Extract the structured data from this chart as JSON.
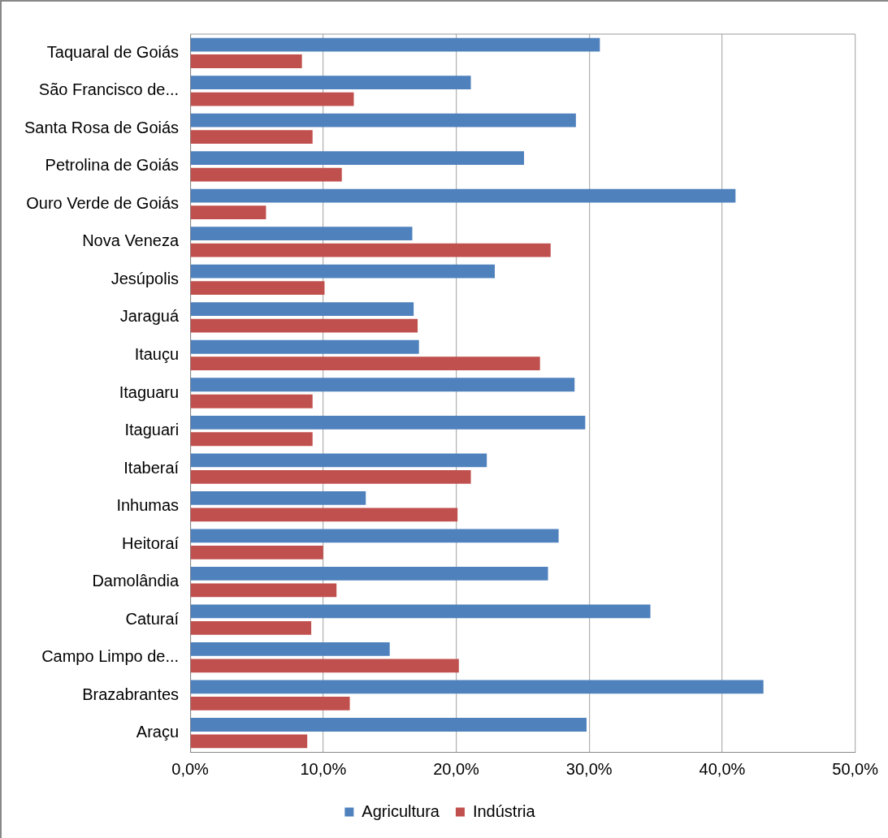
{
  "chart_data": {
    "type": "bar",
    "orientation": "horizontal",
    "categories": [
      "Taquaral de Goiás",
      "São Francisco de...",
      "Santa Rosa de Goiás",
      "Petrolina de Goiás",
      "Ouro Verde de Goiás",
      "Nova Veneza",
      "Jesúpolis",
      "Jaraguá",
      "Itauçu",
      "Itaguaru",
      "Itaguari",
      "Itaberaí",
      "Inhumas",
      "Heitoraí",
      "Damolândia",
      "Caturaí",
      "Campo Limpo de...",
      "Brazabrantes",
      "Araçu"
    ],
    "series": [
      {
        "name": "Agricultura",
        "color": "#4f81bd",
        "values": [
          30.8,
          21.1,
          29.0,
          25.1,
          41.0,
          16.7,
          22.9,
          16.8,
          17.2,
          28.9,
          29.7,
          22.3,
          13.2,
          27.7,
          26.9,
          34.6,
          15.0,
          43.1,
          29.8
        ]
      },
      {
        "name": "Indústria",
        "color": "#c0504d",
        "values": [
          8.4,
          12.3,
          9.2,
          11.4,
          5.7,
          27.1,
          10.1,
          17.1,
          26.3,
          9.2,
          9.2,
          21.1,
          20.1,
          10.0,
          11.0,
          9.1,
          20.2,
          12.0,
          8.8
        ]
      }
    ],
    "xlim": [
      0,
      50
    ],
    "xticks": [
      {
        "value": 0,
        "label": "0,0%"
      },
      {
        "value": 10,
        "label": "10,0%"
      },
      {
        "value": 20,
        "label": "20,0%"
      },
      {
        "value": 30,
        "label": "30,0%"
      },
      {
        "value": 40,
        "label": "40,0%"
      },
      {
        "value": 50,
        "label": "50,0%"
      }
    ],
    "grid": "x",
    "legend": "bottom"
  }
}
